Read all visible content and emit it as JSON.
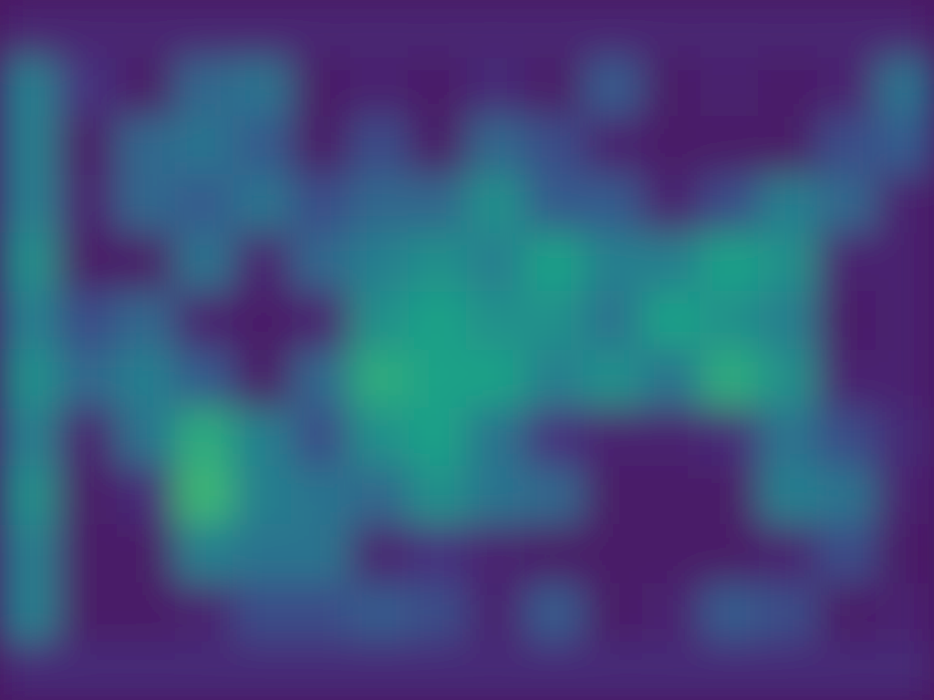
{
  "chart_data": {
    "type": "heatmap",
    "tick_labels": false,
    "zlim": [
      0,
      1
    ],
    "cells": [
      [
        0.12,
        0.12,
        0.12,
        0.12,
        0.12,
        0.12,
        0.12,
        0.12,
        0.12,
        0.12,
        0.12,
        0.12,
        0.12,
        0.12,
        0.12,
        0.12
      ],
      [
        0.5,
        0.2,
        0.05,
        0.4,
        0.45,
        0.05,
        0.1,
        0.05,
        0.15,
        0.05,
        0.35,
        0.05,
        0.1,
        0.05,
        0.1,
        0.45
      ],
      [
        0.5,
        0.05,
        0.4,
        0.45,
        0.35,
        0.05,
        0.3,
        0.05,
        0.4,
        0.3,
        0.1,
        0.05,
        0.05,
        0.05,
        0.3,
        0.35
      ],
      [
        0.5,
        0.1,
        0.4,
        0.35,
        0.45,
        0.3,
        0.4,
        0.4,
        0.55,
        0.35,
        0.35,
        0.1,
        0.3,
        0.5,
        0.4,
        0.1
      ],
      [
        0.55,
        0.05,
        0.05,
        0.45,
        0.1,
        0.4,
        0.5,
        0.55,
        0.5,
        0.6,
        0.5,
        0.5,
        0.6,
        0.55,
        0.1,
        0.1
      ],
      [
        0.5,
        0.3,
        0.4,
        0.1,
        0.05,
        0.1,
        0.55,
        0.6,
        0.55,
        0.55,
        0.45,
        0.6,
        0.55,
        0.5,
        0.05,
        0.1
      ],
      [
        0.55,
        0.4,
        0.5,
        0.35,
        0.05,
        0.4,
        0.65,
        0.6,
        0.6,
        0.5,
        0.55,
        0.45,
        0.65,
        0.55,
        0.1,
        0.1
      ],
      [
        0.5,
        0.1,
        0.45,
        0.65,
        0.5,
        0.3,
        0.55,
        0.6,
        0.45,
        0.2,
        0.1,
        0.1,
        0.15,
        0.45,
        0.3,
        0.15
      ],
      [
        0.55,
        0.05,
        0.15,
        0.7,
        0.5,
        0.45,
        0.4,
        0.55,
        0.45,
        0.4,
        0.05,
        0.05,
        0.05,
        0.5,
        0.45,
        0.1
      ],
      [
        0.5,
        0.05,
        0.05,
        0.5,
        0.45,
        0.45,
        0.1,
        0.2,
        0.1,
        0.05,
        0.05,
        0.05,
        0.05,
        0.1,
        0.3,
        0.05
      ],
      [
        0.5,
        0.05,
        0.05,
        0.1,
        0.3,
        0.3,
        0.35,
        0.3,
        0.1,
        0.35,
        0.05,
        0.1,
        0.35,
        0.3,
        0.05,
        0.1
      ],
      [
        0.15,
        0.15,
        0.15,
        0.15,
        0.15,
        0.15,
        0.15,
        0.15,
        0.15,
        0.15,
        0.15,
        0.15,
        0.15,
        0.15,
        0.15,
        0.15
      ]
    ]
  }
}
